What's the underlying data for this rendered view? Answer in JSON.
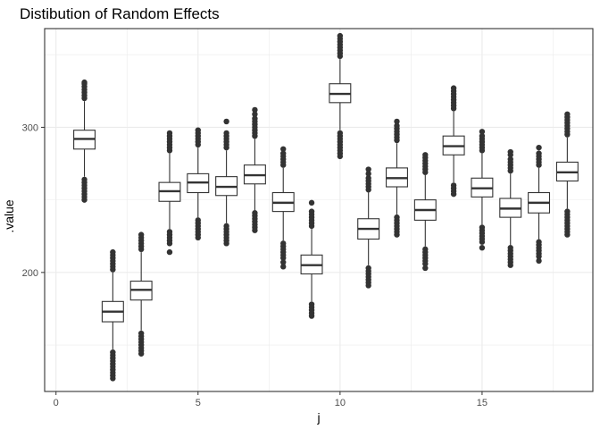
{
  "chart_data": {
    "type": "boxplot",
    "title": "Distibution of Random Effects",
    "xlabel": "j",
    "ylabel": ".value",
    "xlim": [
      -0.4,
      18.9
    ],
    "ylim": [
      118,
      368
    ],
    "x_ticks": [
      0,
      5,
      10,
      15
    ],
    "x_tick_labels": [
      "0",
      "5",
      "10",
      "15"
    ],
    "y_ticks": [
      200,
      300
    ],
    "y_tick_labels": [
      "200",
      "300"
    ],
    "grid": true,
    "legend": "none",
    "colors": {
      "box_fill": "#ffffff",
      "box_stroke": "#333333",
      "outlier": "#333333",
      "grid": "#ebebeb",
      "panel_border": "#333333"
    },
    "boxes": [
      {
        "j": 1,
        "q1": 285,
        "median": 292,
        "q3": 298,
        "whisker_low": 266,
        "whisker_high": 318,
        "outliers_low": [
          264,
          262,
          260,
          258,
          256,
          254,
          252,
          250
        ],
        "outliers_high": [
          320,
          322,
          324,
          326,
          328,
          330,
          331
        ]
      },
      {
        "j": 2,
        "q1": 166,
        "median": 173,
        "q3": 180,
        "whisker_low": 147,
        "whisker_high": 200,
        "outliers_low": [
          145,
          143,
          141,
          139,
          137,
          135,
          133,
          131,
          129,
          127
        ],
        "outliers_high": [
          202,
          204,
          206,
          208,
          210,
          212,
          214
        ]
      },
      {
        "j": 3,
        "q1": 181,
        "median": 188,
        "q3": 194,
        "whisker_low": 160,
        "whisker_high": 214,
        "outliers_low": [
          158,
          156,
          154,
          152,
          150,
          148,
          146,
          144
        ],
        "outliers_high": [
          216,
          218,
          220,
          222,
          224,
          226
        ]
      },
      {
        "j": 4,
        "q1": 249,
        "median": 256,
        "q3": 262,
        "whisker_low": 230,
        "whisker_high": 282,
        "outliers_low": [
          228,
          226,
          224,
          222,
          220,
          214
        ],
        "outliers_high": [
          284,
          286,
          288,
          290,
          292,
          294,
          296
        ]
      },
      {
        "j": 5,
        "q1": 255,
        "median": 262,
        "q3": 268,
        "whisker_low": 238,
        "whisker_high": 286,
        "outliers_low": [
          236,
          234,
          232,
          230,
          228,
          226,
          224
        ],
        "outliers_high": [
          288,
          290,
          292,
          294,
          296,
          298
        ]
      },
      {
        "j": 6,
        "q1": 253,
        "median": 259,
        "q3": 266,
        "whisker_low": 234,
        "whisker_high": 284,
        "outliers_low": [
          232,
          230,
          228,
          226,
          224,
          222,
          220
        ],
        "outliers_high": [
          286,
          288,
          290,
          292,
          294,
          296,
          304
        ]
      },
      {
        "j": 7,
        "q1": 261,
        "median": 267,
        "q3": 274,
        "whisker_low": 243,
        "whisker_high": 292,
        "outliers_low": [
          241,
          239,
          237,
          235,
          233,
          231,
          229
        ],
        "outliers_high": [
          294,
          296,
          298,
          300,
          302,
          304,
          306,
          309,
          312
        ]
      },
      {
        "j": 8,
        "q1": 242,
        "median": 248,
        "q3": 255,
        "whisker_low": 222,
        "whisker_high": 272,
        "outliers_low": [
          220,
          218,
          216,
          214,
          212,
          210,
          207,
          204
        ],
        "outliers_high": [
          274,
          276,
          278,
          280,
          282,
          285
        ]
      },
      {
        "j": 9,
        "q1": 199,
        "median": 205,
        "q3": 212,
        "whisker_low": 180,
        "whisker_high": 230,
        "outliers_low": [
          178,
          176,
          174,
          172,
          170
        ],
        "outliers_high": [
          232,
          234,
          236,
          238,
          240,
          242,
          248
        ]
      },
      {
        "j": 10,
        "q1": 317,
        "median": 323,
        "q3": 330,
        "whisker_low": 298,
        "whisker_high": 347,
        "outliers_low": [
          296,
          294,
          292,
          290,
          288,
          286,
          284,
          282,
          280
        ],
        "outliers_high": [
          349,
          351,
          353,
          355,
          357,
          359,
          361,
          363
        ]
      },
      {
        "j": 11,
        "q1": 223,
        "median": 230,
        "q3": 237,
        "whisker_low": 205,
        "whisker_high": 255,
        "outliers_low": [
          203,
          201,
          199,
          197,
          195,
          193,
          191
        ],
        "outliers_high": [
          257,
          259,
          261,
          263,
          265,
          268,
          271
        ]
      },
      {
        "j": 12,
        "q1": 259,
        "median": 265,
        "q3": 272,
        "whisker_low": 240,
        "whisker_high": 289,
        "outliers_low": [
          238,
          236,
          234,
          232,
          230,
          228,
          226
        ],
        "outliers_high": [
          291,
          293,
          295,
          297,
          299,
          301,
          304
        ]
      },
      {
        "j": 13,
        "q1": 236,
        "median": 243,
        "q3": 250,
        "whisker_low": 218,
        "whisker_high": 267,
        "outliers_low": [
          216,
          214,
          212,
          210,
          208,
          206,
          203
        ],
        "outliers_high": [
          269,
          271,
          273,
          275,
          277,
          279,
          281
        ]
      },
      {
        "j": 14,
        "q1": 281,
        "median": 287,
        "q3": 294,
        "whisker_low": 262,
        "whisker_high": 311,
        "outliers_low": [
          260,
          258,
          256,
          254
        ],
        "outliers_high": [
          313,
          315,
          317,
          319,
          321,
          323,
          325,
          327
        ]
      },
      {
        "j": 15,
        "q1": 252,
        "median": 258,
        "q3": 265,
        "whisker_low": 233,
        "whisker_high": 282,
        "outliers_low": [
          231,
          229,
          227,
          225,
          223,
          221,
          217
        ],
        "outliers_high": [
          284,
          286,
          288,
          290,
          292,
          294,
          297
        ]
      },
      {
        "j": 16,
        "q1": 238,
        "median": 244,
        "q3": 251,
        "whisker_low": 219,
        "whisker_high": 268,
        "outliers_low": [
          217,
          215,
          213,
          211,
          209,
          207,
          205
        ],
        "outliers_high": [
          270,
          272,
          274,
          276,
          278,
          281,
          283
        ]
      },
      {
        "j": 17,
        "q1": 241,
        "median": 248,
        "q3": 255,
        "whisker_low": 223,
        "whisker_high": 272,
        "outliers_low": [
          221,
          219,
          217,
          215,
          213,
          211,
          208
        ],
        "outliers_high": [
          274,
          276,
          278,
          280,
          282,
          286
        ]
      },
      {
        "j": 18,
        "q1": 263,
        "median": 269,
        "q3": 276,
        "whisker_low": 244,
        "whisker_high": 293,
        "outliers_low": [
          242,
          240,
          238,
          236,
          234,
          232,
          230,
          228,
          226
        ],
        "outliers_high": [
          295,
          297,
          299,
          301,
          303,
          305,
          307,
          309
        ]
      }
    ]
  }
}
